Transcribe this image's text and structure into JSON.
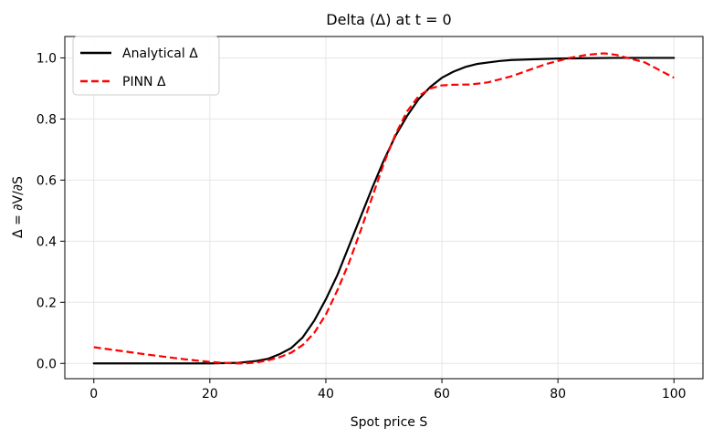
{
  "chart_data": {
    "type": "line",
    "title": "Delta (Δ) at t = 0",
    "xlabel": "Spot price S",
    "ylabel": "Δ = ∂V/∂S",
    "xlim": [
      -5,
      105
    ],
    "ylim": [
      -0.05,
      1.07
    ],
    "xticks": [
      0,
      20,
      40,
      60,
      80,
      100
    ],
    "yticks": [
      0.0,
      0.2,
      0.4,
      0.6,
      0.8,
      1.0
    ],
    "xtick_labels": [
      "0",
      "20",
      "40",
      "60",
      "80",
      "100"
    ],
    "ytick_labels": [
      "0.0",
      "0.2",
      "0.4",
      "0.6",
      "0.8",
      "1.0"
    ],
    "grid": true,
    "legend_position": "top-left",
    "series": [
      {
        "name": "Analytical Δ",
        "color": "#000000",
        "style": "solid",
        "x": [
          0,
          10,
          20,
          25,
          28,
          30,
          32,
          34,
          36,
          38,
          40,
          42,
          44,
          46,
          48,
          50,
          52,
          54,
          56,
          58,
          60,
          62,
          64,
          66,
          68,
          70,
          72,
          75,
          80,
          85,
          90,
          95,
          100
        ],
        "y": [
          0.0,
          0.0,
          0.0,
          0.002,
          0.008,
          0.015,
          0.03,
          0.05,
          0.085,
          0.14,
          0.21,
          0.29,
          0.385,
          0.48,
          0.575,
          0.665,
          0.745,
          0.81,
          0.865,
          0.905,
          0.935,
          0.955,
          0.97,
          0.98,
          0.985,
          0.99,
          0.993,
          0.995,
          0.998,
          0.999,
          1.0,
          1.0,
          1.0
        ]
      },
      {
        "name": "PINN Δ",
        "color": "#ff0000",
        "style": "dashed",
        "x": [
          0,
          5,
          10,
          15,
          20,
          22,
          24,
          26,
          28,
          30,
          32,
          34,
          36,
          38,
          40,
          42,
          44,
          46,
          48,
          50,
          52,
          54,
          56,
          58,
          60,
          62,
          65,
          68,
          70,
          72,
          75,
          78,
          80,
          82,
          85,
          88,
          90,
          92,
          95,
          98,
          100
        ],
        "y": [
          0.053,
          0.04,
          0.027,
          0.015,
          0.005,
          0.002,
          0.0,
          0.0,
          0.003,
          0.01,
          0.02,
          0.035,
          0.06,
          0.1,
          0.16,
          0.24,
          0.33,
          0.435,
          0.545,
          0.655,
          0.75,
          0.825,
          0.875,
          0.9,
          0.91,
          0.912,
          0.913,
          0.92,
          0.93,
          0.94,
          0.96,
          0.98,
          0.99,
          1.0,
          1.01,
          1.015,
          1.01,
          1.0,
          0.985,
          0.955,
          0.935
        ]
      }
    ]
  }
}
